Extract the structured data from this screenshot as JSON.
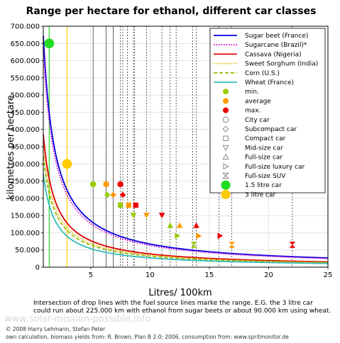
{
  "chart_data": {
    "type": "line",
    "title": "Range per hectare for ethanol, different car classes",
    "xlabel": "Litres/ 100km",
    "ylabel": "kilometres per hectare",
    "xlim": [
      1,
      25
    ],
    "ylim": [
      0,
      700000
    ],
    "x_ticks": [
      5,
      10,
      15,
      20,
      25
    ],
    "x_tick_labels": [
      "5",
      "10",
      "15",
      "20",
      "25"
    ],
    "y_ticks": [
      0,
      50000,
      100000,
      150000,
      200000,
      250000,
      300000,
      350000,
      400000,
      450000,
      500000,
      550000,
      600000,
      650000,
      700000
    ],
    "y_tick_labels": [
      "0",
      "50.000",
      "100.000",
      "150.000",
      "200.000",
      "250.000",
      "300.000",
      "350.000",
      "400.000",
      "450.000",
      "500.000",
      "550.000",
      "600.000",
      "650.000",
      "700.000"
    ],
    "grid": true,
    "legend_position": "top-right",
    "series": [
      {
        "name": "Sugar beet (France)",
        "color": "#0000dd",
        "style": "solid",
        "k": 672000
      },
      {
        "name": "Sugarcane (Brazil)*",
        "color": "#cc00cc",
        "style": "dotted",
        "k": 632000
      },
      {
        "name": "Cassava (Nigeria)",
        "color": "#dd0000",
        "style": "solid",
        "k": 385000
      },
      {
        "name": "Sweet Sorghum (India)",
        "color": "#e8b400",
        "style": "dotted",
        "k": 347000
      },
      {
        "name": "Corn (U.S.)",
        "color": "#99bb00",
        "style": "dashed",
        "k": 321000
      },
      {
        "name": "Wheat (France)",
        "color": "#33bbbb",
        "style": "solid",
        "k": 270000
      }
    ],
    "marker_legend": [
      {
        "label": "min.",
        "shape": "circle-filled",
        "color": "#99cc00"
      },
      {
        "label": "average",
        "shape": "circle-filled",
        "color": "#ff9900"
      },
      {
        "label": "max.",
        "shape": "circle-filled",
        "color": "#ee0000"
      },
      {
        "label": "City car",
        "shape": "circle-open",
        "color": "#888888"
      },
      {
        "label": "Subcompact car",
        "shape": "diamond-open",
        "color": "#888888"
      },
      {
        "label": "Compact car",
        "shape": "square-open",
        "color": "#888888"
      },
      {
        "label": "Mid-size car",
        "shape": "triangle-down-open",
        "color": "#888888"
      },
      {
        "label": "Full-size car",
        "shape": "triangle-up-open",
        "color": "#888888"
      },
      {
        "label": "Full-size luxury car",
        "shape": "triangle-right-open",
        "color": "#888888"
      },
      {
        "label": "Full-size SUV",
        "shape": "hourglass-open",
        "color": "#888888"
      },
      {
        "label": "1.5 litre car",
        "shape": "big-circle",
        "color": "#22dd22"
      },
      {
        "label": "3 litre car",
        "shape": "big-circle",
        "color": "#ffcc00"
      }
    ],
    "drop_lines": [
      {
        "x": 1.5,
        "color": "#22dd22"
      },
      {
        "x": 3.0,
        "color": "#ffcc00"
      },
      {
        "x": 5.2,
        "color": "#000000"
      },
      {
        "x": 6.3,
        "color": "#000000"
      },
      {
        "x": 6.9,
        "color": "#000000"
      },
      {
        "x": 7.5,
        "color": "#000000",
        "dashed": true
      },
      {
        "x": 7.7,
        "color": "#000000",
        "dashed": true
      },
      {
        "x": 8.1,
        "color": "#000000",
        "dashed": true
      },
      {
        "x": 8.6,
        "color": "#000000",
        "dashed": true
      },
      {
        "x": 8.7,
        "color": "#000000",
        "dashed": true
      },
      {
        "x": 9.7,
        "color": "#000000",
        "dashed": true
      },
      {
        "x": 11.0,
        "color": "#000000",
        "dashed": true
      },
      {
        "x": 11.7,
        "color": "#000000",
        "dashed": true
      },
      {
        "x": 12.2,
        "color": "#000000",
        "dashed": true
      },
      {
        "x": 13.6,
        "color": "#000000",
        "dashed": true
      },
      {
        "x": 13.9,
        "color": "#000000",
        "dashed": true
      },
      {
        "x": 15.8,
        "color": "#000000",
        "dashed": true
      },
      {
        "x": 16.9,
        "color": "#000000",
        "dashed": true
      },
      {
        "x": 22.0,
        "color": "#000000",
        "dashed": true
      }
    ],
    "points": [
      {
        "x": 1.5,
        "y": 650000,
        "shape": "big-circle",
        "color": "#22dd22"
      },
      {
        "x": 3.0,
        "y": 300000,
        "shape": "big-circle",
        "color": "#ffcc00"
      },
      {
        "x": 5.2,
        "y": 241000,
        "shape": "circle-filled",
        "color": "#99cc00"
      },
      {
        "x": 6.3,
        "y": 241000,
        "shape": "circle-filled",
        "color": "#ff9900"
      },
      {
        "x": 7.5,
        "y": 241000,
        "shape": "circle-filled",
        "color": "#ee0000"
      },
      {
        "x": 6.4,
        "y": 210000,
        "shape": "diamond-filled",
        "color": "#99cc00"
      },
      {
        "x": 6.9,
        "y": 210000,
        "shape": "diamond-filled",
        "color": "#ff9900"
      },
      {
        "x": 7.7,
        "y": 210000,
        "shape": "diamond-filled",
        "color": "#ee0000"
      },
      {
        "x": 7.5,
        "y": 180000,
        "shape": "square-filled",
        "color": "#99cc00"
      },
      {
        "x": 8.2,
        "y": 180000,
        "shape": "square-filled",
        "color": "#ff9900"
      },
      {
        "x": 8.8,
        "y": 180000,
        "shape": "square-filled",
        "color": "#ee0000"
      },
      {
        "x": 8.6,
        "y": 151000,
        "shape": "triangle-down-filled",
        "color": "#99cc00"
      },
      {
        "x": 9.7,
        "y": 151000,
        "shape": "triangle-down-filled",
        "color": "#ff9900"
      },
      {
        "x": 11.0,
        "y": 151000,
        "shape": "triangle-down-filled",
        "color": "#ee0000"
      },
      {
        "x": 11.7,
        "y": 121000,
        "shape": "triangle-up-filled",
        "color": "#99cc00"
      },
      {
        "x": 12.5,
        "y": 121000,
        "shape": "triangle-up-filled",
        "color": "#ff9900"
      },
      {
        "x": 13.9,
        "y": 121000,
        "shape": "triangle-up-filled",
        "color": "#ee0000"
      },
      {
        "x": 12.3,
        "y": 91000,
        "shape": "triangle-right-filled",
        "color": "#99cc00"
      },
      {
        "x": 14.1,
        "y": 91000,
        "shape": "triangle-right-filled",
        "color": "#ff9900"
      },
      {
        "x": 15.9,
        "y": 91000,
        "shape": "triangle-right-filled",
        "color": "#ee0000"
      },
      {
        "x": 13.7,
        "y": 65000,
        "shape": "hourglass-filled",
        "color": "#99cc00"
      },
      {
        "x": 16.9,
        "y": 65000,
        "shape": "hourglass-filled",
        "color": "#ff9900"
      },
      {
        "x": 22.0,
        "y": 65000,
        "shape": "hourglass-filled",
        "color": "#ee0000"
      }
    ]
  },
  "footnote": {
    "line1": "Intersection of drop lines with the fuel source lines marke the range. E.G. the 3 litre car",
    "line2": "could run about 225.000 km with ethanol from sugar beets or about 90.000 km using wheat.",
    "watermark": "www.solar-mission-possible.info",
    "credit1": "© 2008 Harry Lehmann, Stefan Peter",
    "credit2": "own calculation, biomass yields from: R. Brown, Plan B 2.0; 2006, consumption from: www.spritmonitor.de"
  }
}
